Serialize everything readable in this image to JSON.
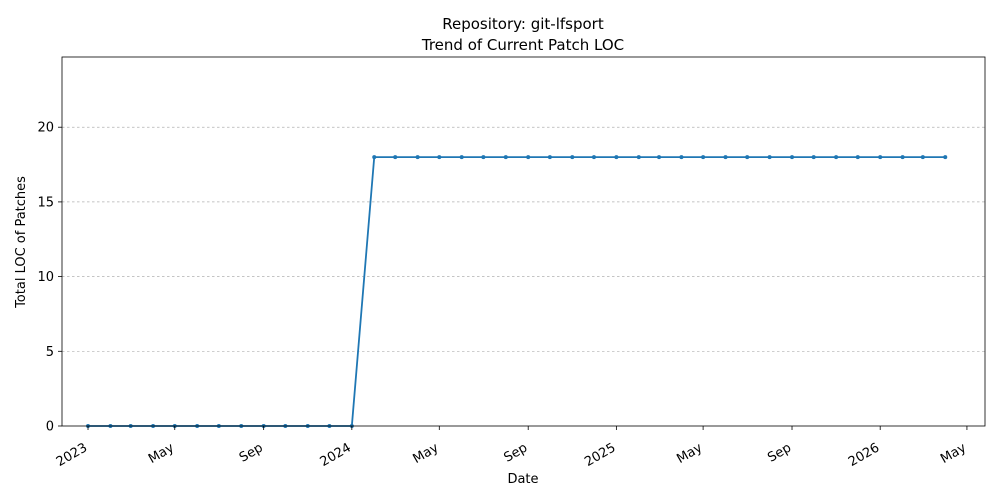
{
  "chart_data": {
    "type": "line",
    "title_lines": [
      "Repository: git-lfsport",
      "Trend of Current Patch LOC"
    ],
    "xlabel": "Date",
    "ylabel": "Total LOC of Patches",
    "xlim": [
      "2022-11-26",
      "2026-05-26"
    ],
    "ylim": [
      0,
      24.7
    ],
    "y_ticks": [
      0,
      5,
      10,
      15,
      20
    ],
    "x_ticks": [
      {
        "date": "2023-01-01",
        "label": "2023"
      },
      {
        "date": "2023-05-01",
        "label": "May"
      },
      {
        "date": "2023-09-01",
        "label": "Sep"
      },
      {
        "date": "2024-01-01",
        "label": "2024"
      },
      {
        "date": "2024-05-01",
        "label": "May"
      },
      {
        "date": "2024-09-01",
        "label": "Sep"
      },
      {
        "date": "2025-01-01",
        "label": "2025"
      },
      {
        "date": "2025-05-01",
        "label": "May"
      },
      {
        "date": "2025-09-01",
        "label": "Sep"
      },
      {
        "date": "2026-01-01",
        "label": "2026"
      },
      {
        "date": "2026-05-01",
        "label": "May"
      }
    ],
    "grid": "y-dashed",
    "line_color": "#1f77b4",
    "series": [
      {
        "x": [
          "2023-01-01",
          "2023-02-01",
          "2023-03-01",
          "2023-04-01",
          "2023-05-01",
          "2023-06-01",
          "2023-07-01",
          "2023-08-01",
          "2023-09-01",
          "2023-10-01",
          "2023-11-01",
          "2023-12-01",
          "2024-01-01",
          "2024-02-01",
          "2024-03-01",
          "2024-04-01",
          "2024-05-01",
          "2024-06-01",
          "2024-07-01",
          "2024-08-01",
          "2024-09-01",
          "2024-10-01",
          "2024-11-01",
          "2024-12-01",
          "2025-01-01",
          "2025-02-01",
          "2025-03-01",
          "2025-04-01",
          "2025-05-01",
          "2025-06-01",
          "2025-07-01",
          "2025-08-01",
          "2025-09-01",
          "2025-10-01",
          "2025-11-01",
          "2025-12-01",
          "2026-01-01",
          "2026-02-01",
          "2026-03-01",
          "2026-04-01"
        ],
        "values": [
          0,
          0,
          0,
          0,
          0,
          0,
          0,
          0,
          0,
          0,
          0,
          0,
          0,
          18,
          18,
          18,
          18,
          18,
          18,
          18,
          18,
          18,
          18,
          18,
          18,
          18,
          18,
          18,
          18,
          18,
          18,
          18,
          18,
          18,
          18,
          18,
          18,
          18,
          18,
          18
        ]
      }
    ]
  }
}
